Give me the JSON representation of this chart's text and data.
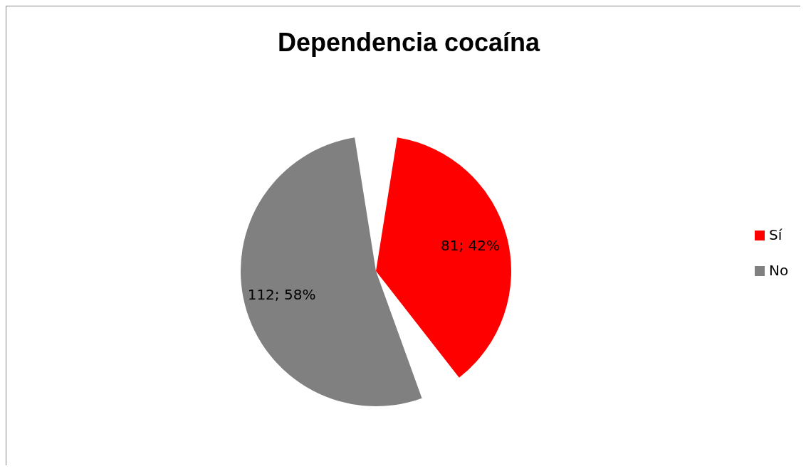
{
  "chart_data": {
    "type": "pie",
    "title": "Dependencia cocaína",
    "categories": [
      "Sí",
      "No"
    ],
    "values": [
      81,
      112
    ],
    "colors": [
      "#ff0000",
      "#808080"
    ],
    "value_labels": [
      "81; 42%",
      "112; 58%"
    ],
    "legend": "right"
  }
}
